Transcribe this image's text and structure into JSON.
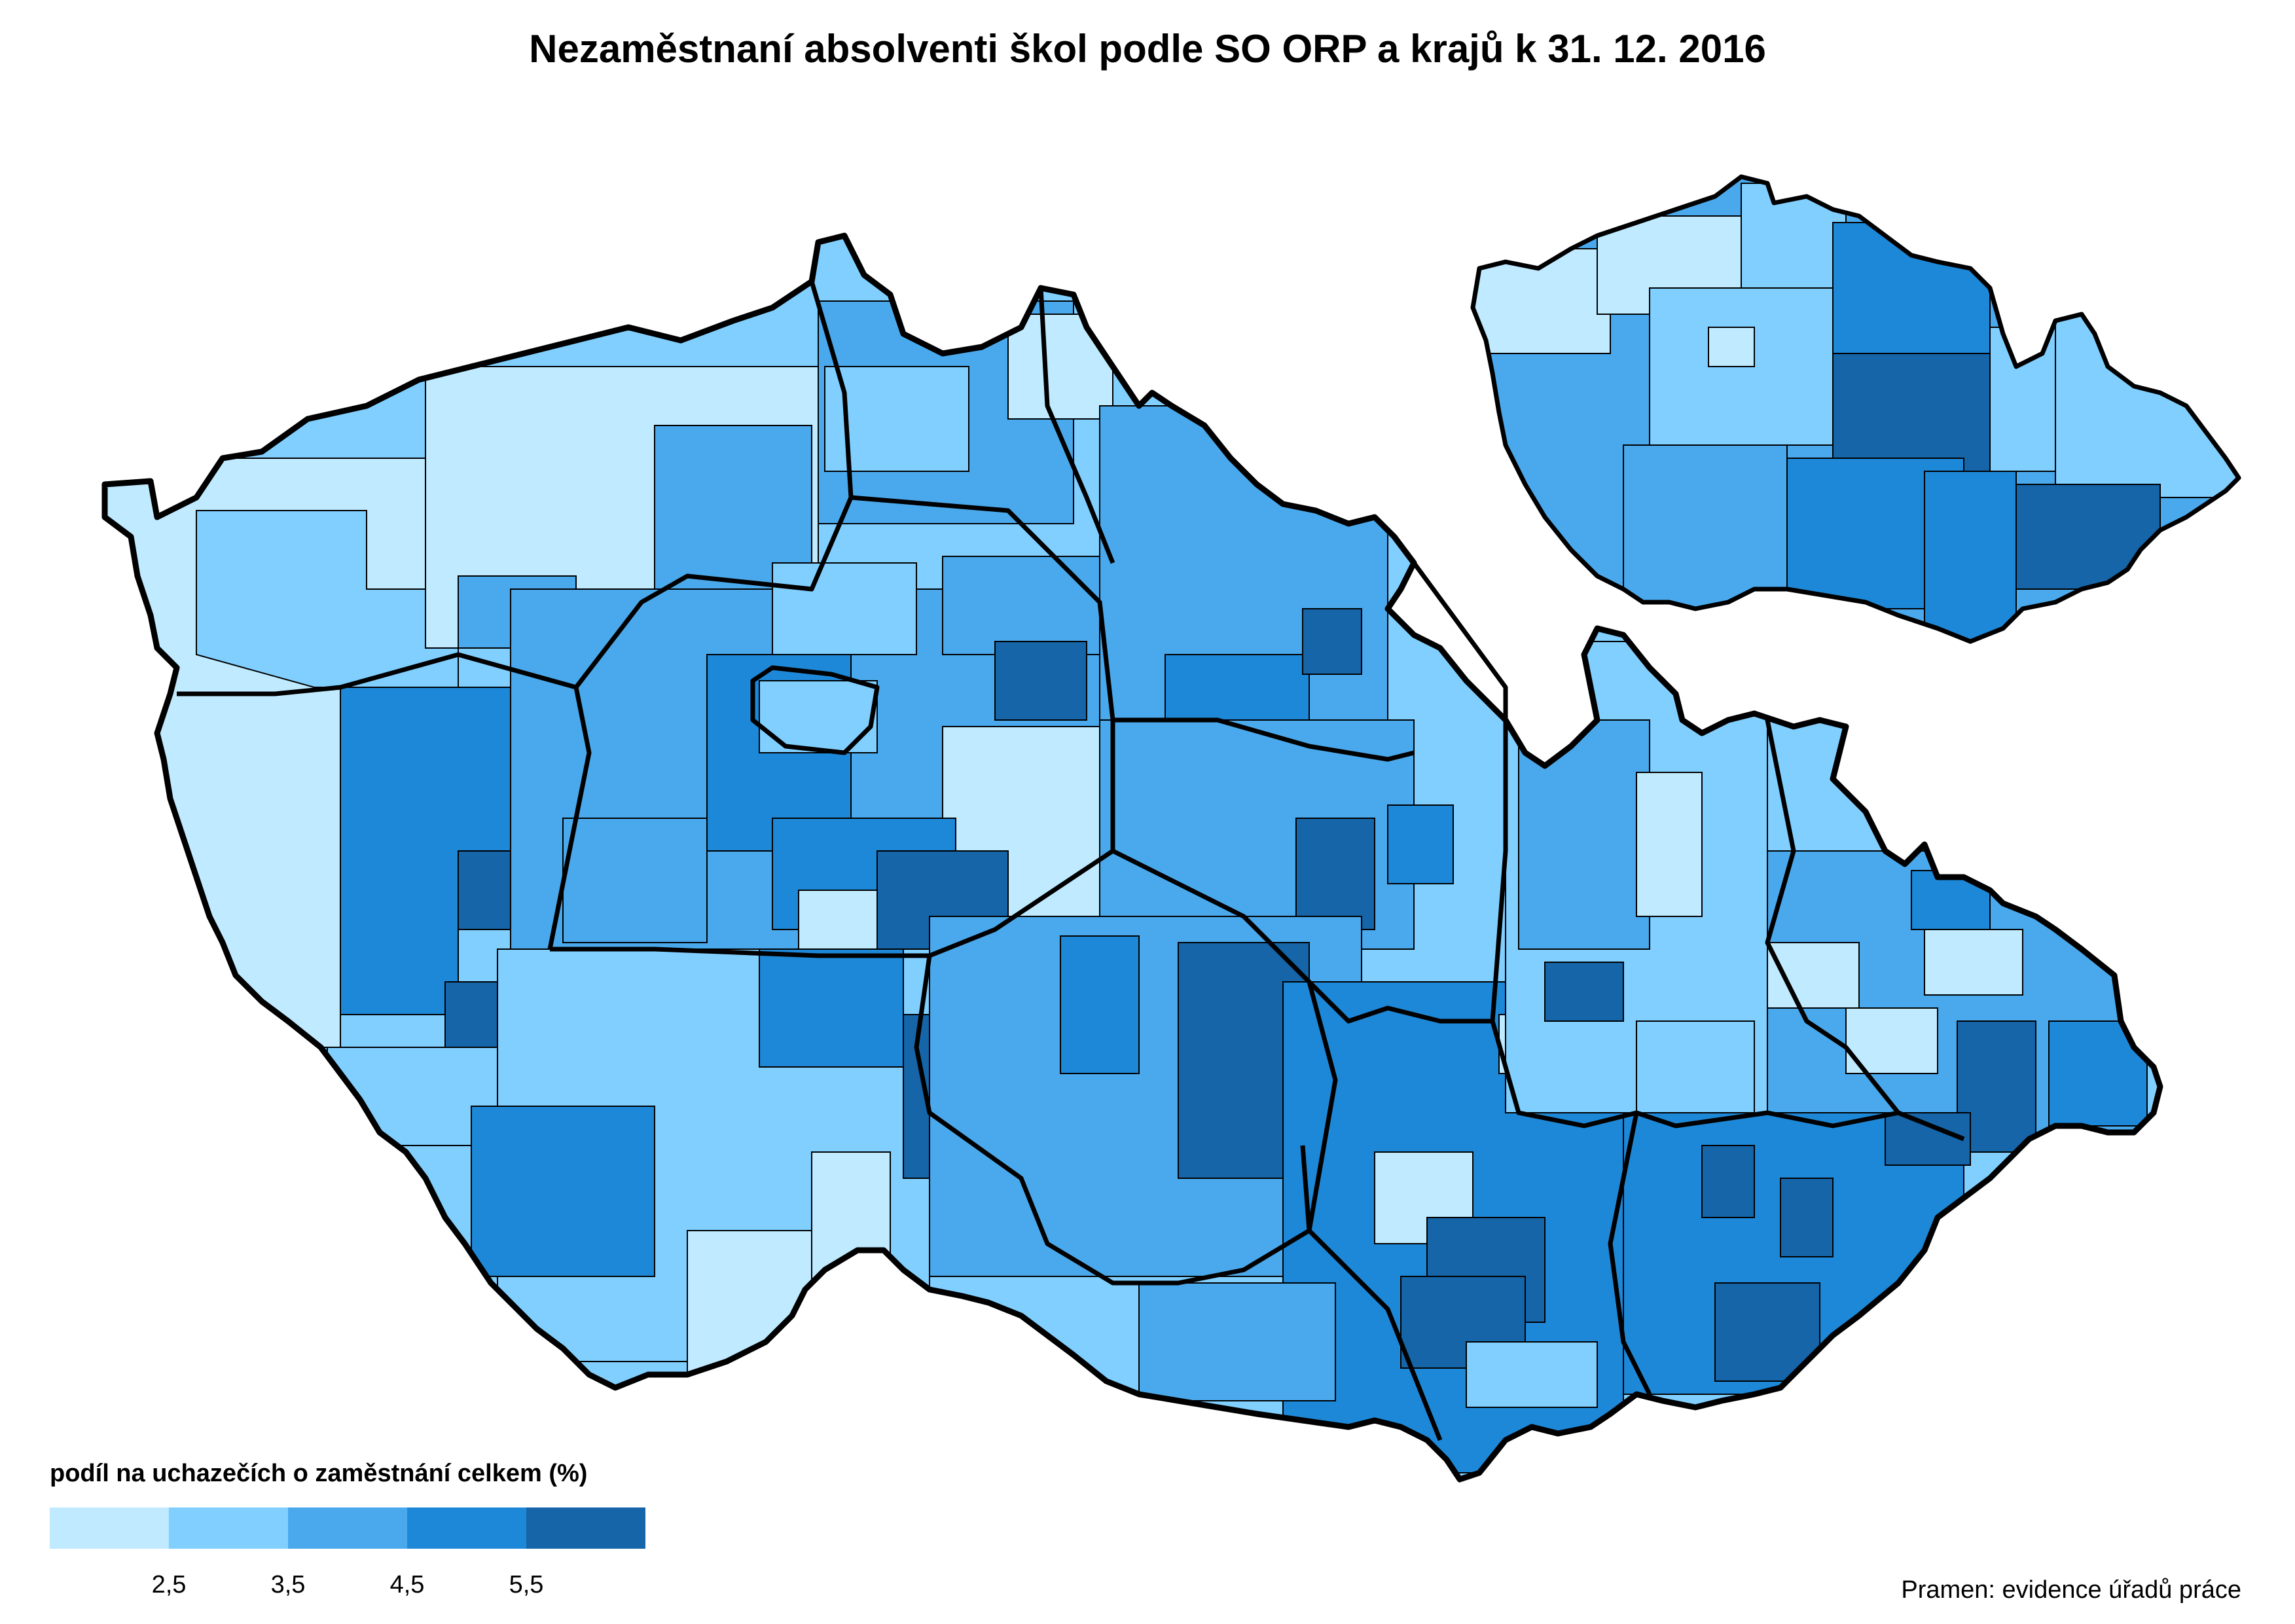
{
  "title": "Nezaměstnaní absolventi škol podle SO ORP a krajů k 31. 12. 2016",
  "legend": {
    "title": "podíl na uchazečích o zaměstnání celkem (%)",
    "ticks": [
      "2,5",
      "3,5",
      "4,5",
      "5,5"
    ],
    "classes": [
      {
        "range": "< 2,5",
        "color": "#bfeaff"
      },
      {
        "range": "2,5 – 3,5",
        "color": "#80cfff"
      },
      {
        "range": "3,5 – 4,5",
        "color": "#4aa9ec"
      },
      {
        "range": "4,5 – 5,5",
        "color": "#1e88d8"
      },
      {
        "range": "> 5,5",
        "color": "#1565a8"
      }
    ]
  },
  "source": "Pramen: evidence úřadů práce",
  "inset": {
    "description": "kraje"
  },
  "colors": {
    "border": "#000000",
    "background": "#ffffff"
  }
}
